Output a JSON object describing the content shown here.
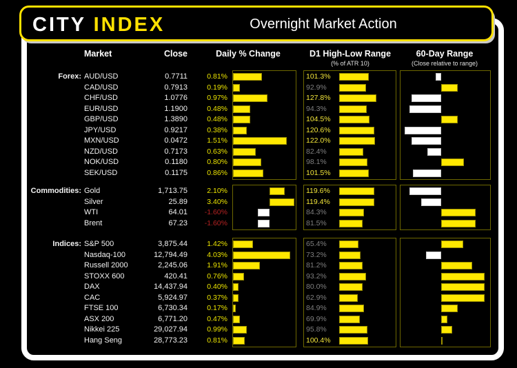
{
  "header": {
    "logo_city": "CITY",
    "logo_index": "INDEX",
    "title": "Overnight Market Action"
  },
  "columns": {
    "market": "Market",
    "close": "Close",
    "daily": "Daily % Change",
    "d1": "D1 High-Low Range",
    "d1_sub": "(% of ATR 10)",
    "sixty": "60-Day Range",
    "sixty_sub": "(Close relative to range)"
  },
  "colors": {
    "accent_yellow": "#ffe800",
    "bar_white": "#ffffff",
    "positive_text": "#ece400",
    "negative_text": "#b42222",
    "d1_high_text": "#f2e53a",
    "d1_low_text": "#7f7f7f",
    "box_border": "#6e6800"
  },
  "chart_data": {
    "type": "table",
    "title": "Overnight Market Action",
    "bar_columns": [
      "Daily % Change",
      "D1 High-Low Range (% of ATR 10)",
      "60-Day Range (Close relative to range)"
    ],
    "sections": [
      {
        "label": "Forex:",
        "rows": [
          {
            "market": "AUD/USD",
            "close": "0.7711",
            "change_pct": 0.81,
            "change_label": "0.81%",
            "d1_pct": 101.3,
            "d1_label": "101.3%",
            "range_pos": 43
          },
          {
            "market": "CAD/USD",
            "close": "0.7913",
            "change_pct": 0.19,
            "change_label": "0.19%",
            "d1_pct": 92.9,
            "d1_label": "92.9%",
            "range_pos": 67
          },
          {
            "market": "CHF/USD",
            "close": "1.0776",
            "change_pct": 0.97,
            "change_label": "0.97%",
            "d1_pct": 127.8,
            "d1_label": "127.8%",
            "range_pos": 14
          },
          {
            "market": "EUR/USD",
            "close": "1.1900",
            "change_pct": 0.48,
            "change_label": "0.48%",
            "d1_pct": 94.3,
            "d1_label": "94.3%",
            "range_pos": 12
          },
          {
            "market": "GBP/USD",
            "close": "1.3890",
            "change_pct": 0.48,
            "change_label": "0.48%",
            "d1_pct": 104.5,
            "d1_label": "104.5%",
            "range_pos": 67
          },
          {
            "market": "JPY/USD",
            "close": "0.9217",
            "change_pct": 0.38,
            "change_label": "0.38%",
            "d1_pct": 120.6,
            "d1_label": "120.6%",
            "range_pos": 6
          },
          {
            "market": "MXN/USD",
            "close": "0.0472",
            "change_pct": 1.51,
            "change_label": "1.51%",
            "d1_pct": 122.0,
            "d1_label": "122.0%",
            "range_pos": 14
          },
          {
            "market": "NZD/USD",
            "close": "0.7173",
            "change_pct": 0.63,
            "change_label": "0.63%",
            "d1_pct": 82.4,
            "d1_label": "82.4%",
            "range_pos": 33
          },
          {
            "market": "NOK/USD",
            "close": "0.1180",
            "change_pct": 0.8,
            "change_label": "0.80%",
            "d1_pct": 98.1,
            "d1_label": "98.1%",
            "range_pos": 73
          },
          {
            "market": "SEK/USD",
            "close": "0.1175",
            "change_pct": 0.86,
            "change_label": "0.86%",
            "d1_pct": 101.5,
            "d1_label": "101.5%",
            "range_pos": 16
          }
        ]
      },
      {
        "label": "Commodities:",
        "rows": [
          {
            "market": "Gold",
            "close": "1,713.75",
            "change_pct": 2.1,
            "change_label": "2.10%",
            "d1_pct": 119.6,
            "d1_label": "119.6%",
            "range_pos": 12
          },
          {
            "market": "Silver",
            "close": "25.89",
            "change_pct": 3.4,
            "change_label": "3.40%",
            "d1_pct": 119.4,
            "d1_label": "119.4%",
            "range_pos": 26
          },
          {
            "market": "WTI",
            "close": "64.01",
            "change_pct": -1.6,
            "change_label": "-1.60%",
            "d1_pct": 84.3,
            "d1_label": "84.3%",
            "range_pos": 85
          },
          {
            "market": "Brent",
            "close": "67.23",
            "change_pct": -1.6,
            "change_label": "-1.60%",
            "d1_pct": 81.5,
            "d1_label": "81.5%",
            "range_pos": 85
          }
        ]
      },
      {
        "label": "Indices:",
        "rows": [
          {
            "market": "S&P 500",
            "close": "3,875.44",
            "change_pct": 1.42,
            "change_label": "1.42%",
            "d1_pct": 65.4,
            "d1_label": "65.4%",
            "range_pos": 72
          },
          {
            "market": "Nasdaq-100",
            "close": "12,794.49",
            "change_pct": 4.03,
            "change_label": "4.03%",
            "d1_pct": 73.2,
            "d1_label": "73.2%",
            "range_pos": 32
          },
          {
            "market": "Russell 2000",
            "close": "2,245.06",
            "change_pct": 1.91,
            "change_label": "1.91%",
            "d1_pct": 81.2,
            "d1_label": "81.2%",
            "range_pos": 81
          },
          {
            "market": "STOXX 600",
            "close": "420.41",
            "change_pct": 0.76,
            "change_label": "0.76%",
            "d1_pct": 93.2,
            "d1_label": "93.2%",
            "range_pos": 94
          },
          {
            "market": "DAX",
            "close": "14,437.94",
            "change_pct": 0.4,
            "change_label": "0.40%",
            "d1_pct": 80.0,
            "d1_label": "80.0%",
            "range_pos": 94
          },
          {
            "market": "CAC",
            "close": "5,924.97",
            "change_pct": 0.37,
            "change_label": "0.37%",
            "d1_pct": 62.9,
            "d1_label": "62.9%",
            "range_pos": 94
          },
          {
            "market": "FTSE 100",
            "close": "6,730.34",
            "change_pct": 0.17,
            "change_label": "0.17%",
            "d1_pct": 84.9,
            "d1_label": "84.9%",
            "range_pos": 67
          },
          {
            "market": "ASX 200",
            "close": "6,771.20",
            "change_pct": 0.47,
            "change_label": "0.47%",
            "d1_pct": 69.9,
            "d1_label": "69.9%",
            "range_pos": 56
          },
          {
            "market": "Nikkei 225",
            "close": "29,027.94",
            "change_pct": 0.99,
            "change_label": "0.99%",
            "d1_pct": 95.8,
            "d1_label": "95.8%",
            "range_pos": 61
          },
          {
            "market": "Hang Seng",
            "close": "28,773.23",
            "change_pct": 0.81,
            "change_label": "0.81%",
            "d1_pct": 100.4,
            "d1_label": "100.4%",
            "range_pos": 51
          }
        ]
      }
    ]
  }
}
